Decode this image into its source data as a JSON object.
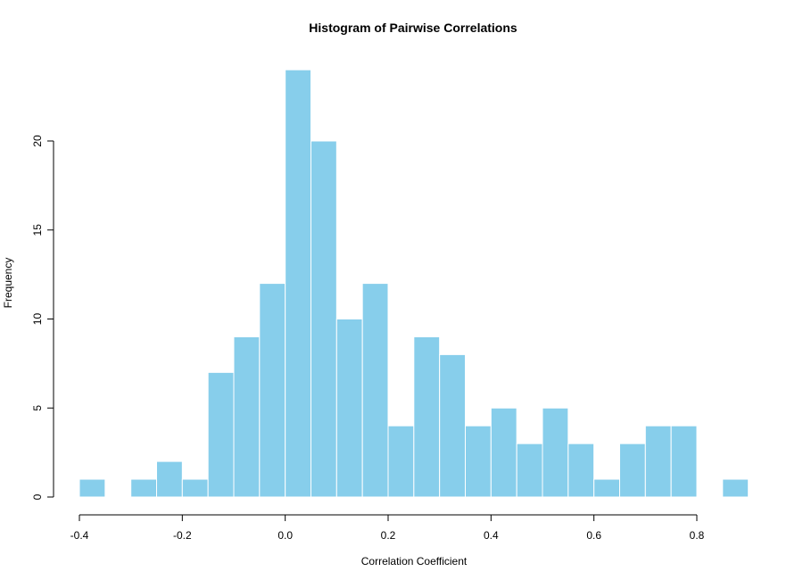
{
  "chart_data": {
    "type": "bar",
    "title": "Histogram of Pairwise Correlations",
    "xlabel": "Correlation Coefficient",
    "ylabel": "Frequency",
    "bin_width": 0.05,
    "bins": [
      {
        "start": -0.4,
        "end": -0.35,
        "count": 1
      },
      {
        "start": -0.35,
        "end": -0.3,
        "count": 0
      },
      {
        "start": -0.3,
        "end": -0.25,
        "count": 1
      },
      {
        "start": -0.25,
        "end": -0.2,
        "count": 2
      },
      {
        "start": -0.2,
        "end": -0.15,
        "count": 1
      },
      {
        "start": -0.15,
        "end": -0.1,
        "count": 7
      },
      {
        "start": -0.1,
        "end": -0.05,
        "count": 9
      },
      {
        "start": -0.05,
        "end": 0.0,
        "count": 12
      },
      {
        "start": 0.0,
        "end": 0.05,
        "count": 24
      },
      {
        "start": 0.05,
        "end": 0.1,
        "count": 20
      },
      {
        "start": 0.1,
        "end": 0.15,
        "count": 10
      },
      {
        "start": 0.15,
        "end": 0.2,
        "count": 12
      },
      {
        "start": 0.2,
        "end": 0.25,
        "count": 4
      },
      {
        "start": 0.25,
        "end": 0.3,
        "count": 9
      },
      {
        "start": 0.3,
        "end": 0.35,
        "count": 8
      },
      {
        "start": 0.35,
        "end": 0.4,
        "count": 4
      },
      {
        "start": 0.4,
        "end": 0.45,
        "count": 5
      },
      {
        "start": 0.45,
        "end": 0.5,
        "count": 3
      },
      {
        "start": 0.5,
        "end": 0.55,
        "count": 5
      },
      {
        "start": 0.55,
        "end": 0.6,
        "count": 3
      },
      {
        "start": 0.6,
        "end": 0.65,
        "count": 1
      },
      {
        "start": 0.65,
        "end": 0.7,
        "count": 3
      },
      {
        "start": 0.7,
        "end": 0.75,
        "count": 4
      },
      {
        "start": 0.75,
        "end": 0.8,
        "count": 4
      },
      {
        "start": 0.8,
        "end": 0.85,
        "count": 0
      },
      {
        "start": 0.85,
        "end": 0.9,
        "count": 1
      }
    ],
    "xlim": [
      -0.4,
      0.9
    ],
    "ylim": [
      0,
      24
    ],
    "x_ticks": [
      -0.4,
      -0.2,
      0.0,
      0.2,
      0.4,
      0.6,
      0.8
    ],
    "x_tick_labels": [
      "-0.4",
      "-0.2",
      "0.0",
      "0.2",
      "0.4",
      "0.6",
      "0.8"
    ],
    "y_ticks": [
      0,
      5,
      10,
      15,
      20
    ],
    "y_tick_labels": [
      "0",
      "5",
      "10",
      "15",
      "20"
    ],
    "bar_color": "#87CEEB",
    "bar_border_color": "#ffffff",
    "grid": false,
    "legend": "none"
  }
}
